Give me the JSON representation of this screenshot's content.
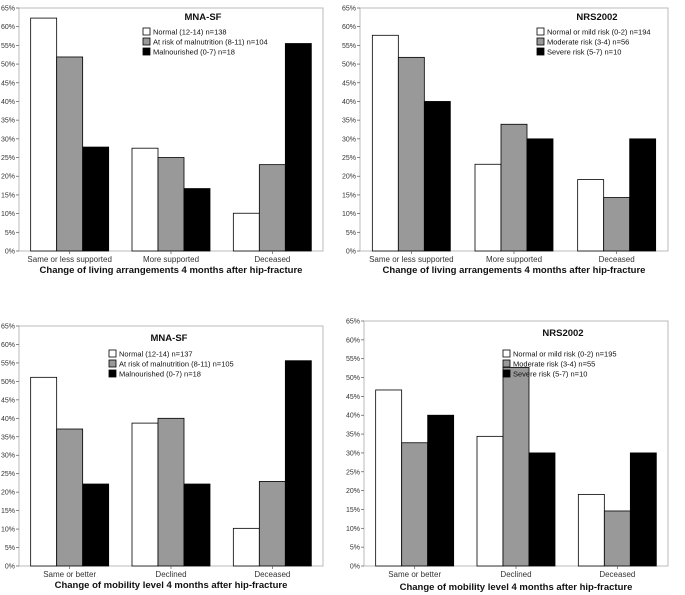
{
  "colors": {
    "normal": "#ffffff",
    "risk": "#999999",
    "severe": "#000000",
    "stroke": "#000000",
    "frame": "#bbbbbb"
  },
  "chart_data": [
    {
      "type": "bar",
      "title": "MNA-SF",
      "xlabel": "Change of living arrangements 4 months after hip-fracture",
      "ylabel": "",
      "ylim": [
        0,
        65
      ],
      "yticks": [
        "0%",
        "5%",
        "10%",
        "15%",
        "20%",
        "25%",
        "30%",
        "35%",
        "40%",
        "45%",
        "50%",
        "55%",
        "60%",
        "65%"
      ],
      "categories": [
        "Same or less supported",
        "More supported",
        "Deceased"
      ],
      "legend_position": "top-right",
      "series": [
        {
          "name": "Normal (12-14) n=138",
          "values": [
            62.3,
            27.5,
            10.1
          ]
        },
        {
          "name": "At risk of malnutrition (8-11) n=104",
          "values": [
            51.9,
            25.0,
            23.1
          ]
        },
        {
          "name": "Malnourished (0-7) n=18",
          "values": [
            27.8,
            16.7,
            55.5
          ]
        }
      ]
    },
    {
      "type": "bar",
      "title": "NRS2002",
      "xlabel": "Change of living arrangements 4 months after hip-fracture",
      "ylabel": "",
      "ylim": [
        0,
        65
      ],
      "yticks": [
        "0%",
        "5%",
        "10%",
        "15%",
        "20%",
        "25%",
        "30%",
        "35%",
        "40%",
        "45%",
        "50%",
        "55%",
        "60%",
        "65%"
      ],
      "categories": [
        "Same or less supported",
        "More supported",
        "Deceased"
      ],
      "legend_position": "top-right",
      "series": [
        {
          "name": "Normal or mild risk (0-2) n=194",
          "values": [
            57.7,
            23.2,
            19.1
          ]
        },
        {
          "name": "Moderate risk (3-4) n=56",
          "values": [
            51.8,
            33.9,
            14.3
          ]
        },
        {
          "name": "Severe risk (5-7) n=10",
          "values": [
            40.0,
            30.0,
            30.0
          ]
        }
      ]
    },
    {
      "type": "bar",
      "title": "MNA-SF",
      "xlabel": "Change of mobility level 4 months after hip-fracture",
      "ylabel": "",
      "ylim": [
        0,
        65
      ],
      "yticks": [
        "0%",
        "5%",
        "10%",
        "15%",
        "20%",
        "25%",
        "30%",
        "35%",
        "40%",
        "45%",
        "50%",
        "55%",
        "60%",
        "65%"
      ],
      "categories": [
        "Same or better",
        "Declined",
        "Deceased"
      ],
      "legend_position": "top-right",
      "series": [
        {
          "name": "Normal (12-14) n=137",
          "values": [
            51.1,
            38.7,
            10.2
          ]
        },
        {
          "name": "At risk of malnutrition (8-11) n=105",
          "values": [
            37.1,
            40.0,
            22.9
          ]
        },
        {
          "name": "Malnourished (0-7) n=18",
          "values": [
            22.2,
            22.2,
            55.6
          ]
        }
      ]
    },
    {
      "type": "bar",
      "title": "NRS2002",
      "xlabel": "Change of mobility level 4 months after hip-fracture",
      "ylabel": "",
      "ylim": [
        0,
        65
      ],
      "yticks": [
        "0%",
        "5%",
        "10%",
        "15%",
        "20%",
        "25%",
        "30%",
        "35%",
        "40%",
        "45%",
        "50%",
        "55%",
        "60%",
        "65%"
      ],
      "categories": [
        "Same or better",
        "Declined",
        "Deceased"
      ],
      "legend_position": "top-right",
      "series": [
        {
          "name": "Normal or mild risk (0-2) n=195",
          "values": [
            46.7,
            34.4,
            19.0
          ]
        },
        {
          "name": "Moderate risk (3-4) n=55",
          "values": [
            32.7,
            52.7,
            14.6
          ]
        },
        {
          "name": "Severe risk (5-7) n=10",
          "values": [
            40.0,
            30.0,
            30.0
          ]
        }
      ]
    }
  ]
}
